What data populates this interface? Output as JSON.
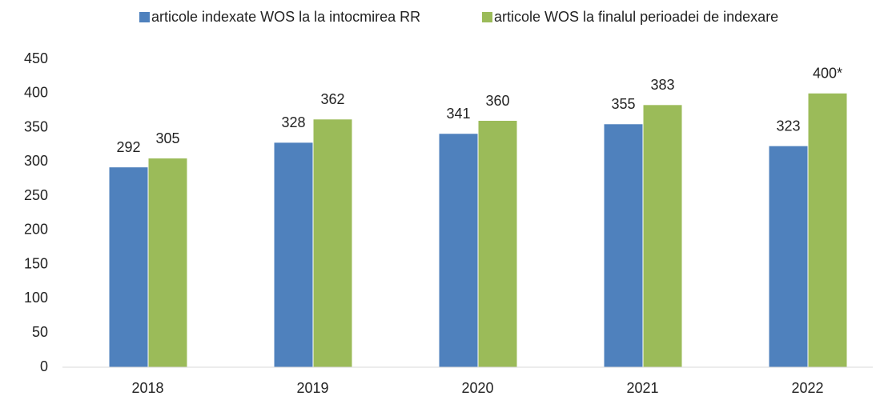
{
  "chart_data": {
    "type": "bar",
    "categories": [
      "2018",
      "2019",
      "2020",
      "2021",
      "2022"
    ],
    "series": [
      {
        "name": "articole indexate WOS la la intocmirea RR",
        "color": "#4f81bd",
        "values": [
          292,
          328,
          341,
          355,
          323
        ]
      },
      {
        "name": "articole WOS la finalul perioadei de indexare",
        "color": "#9bbb59",
        "values": [
          305,
          362,
          360,
          383,
          400
        ],
        "value_labels": [
          "305",
          "362",
          "360",
          "383",
          "400*"
        ]
      }
    ],
    "ylim": [
      0,
      450
    ],
    "yticks": [
      0,
      50,
      100,
      150,
      200,
      250,
      300,
      350,
      400,
      450
    ],
    "grid": false,
    "legend": "top"
  }
}
